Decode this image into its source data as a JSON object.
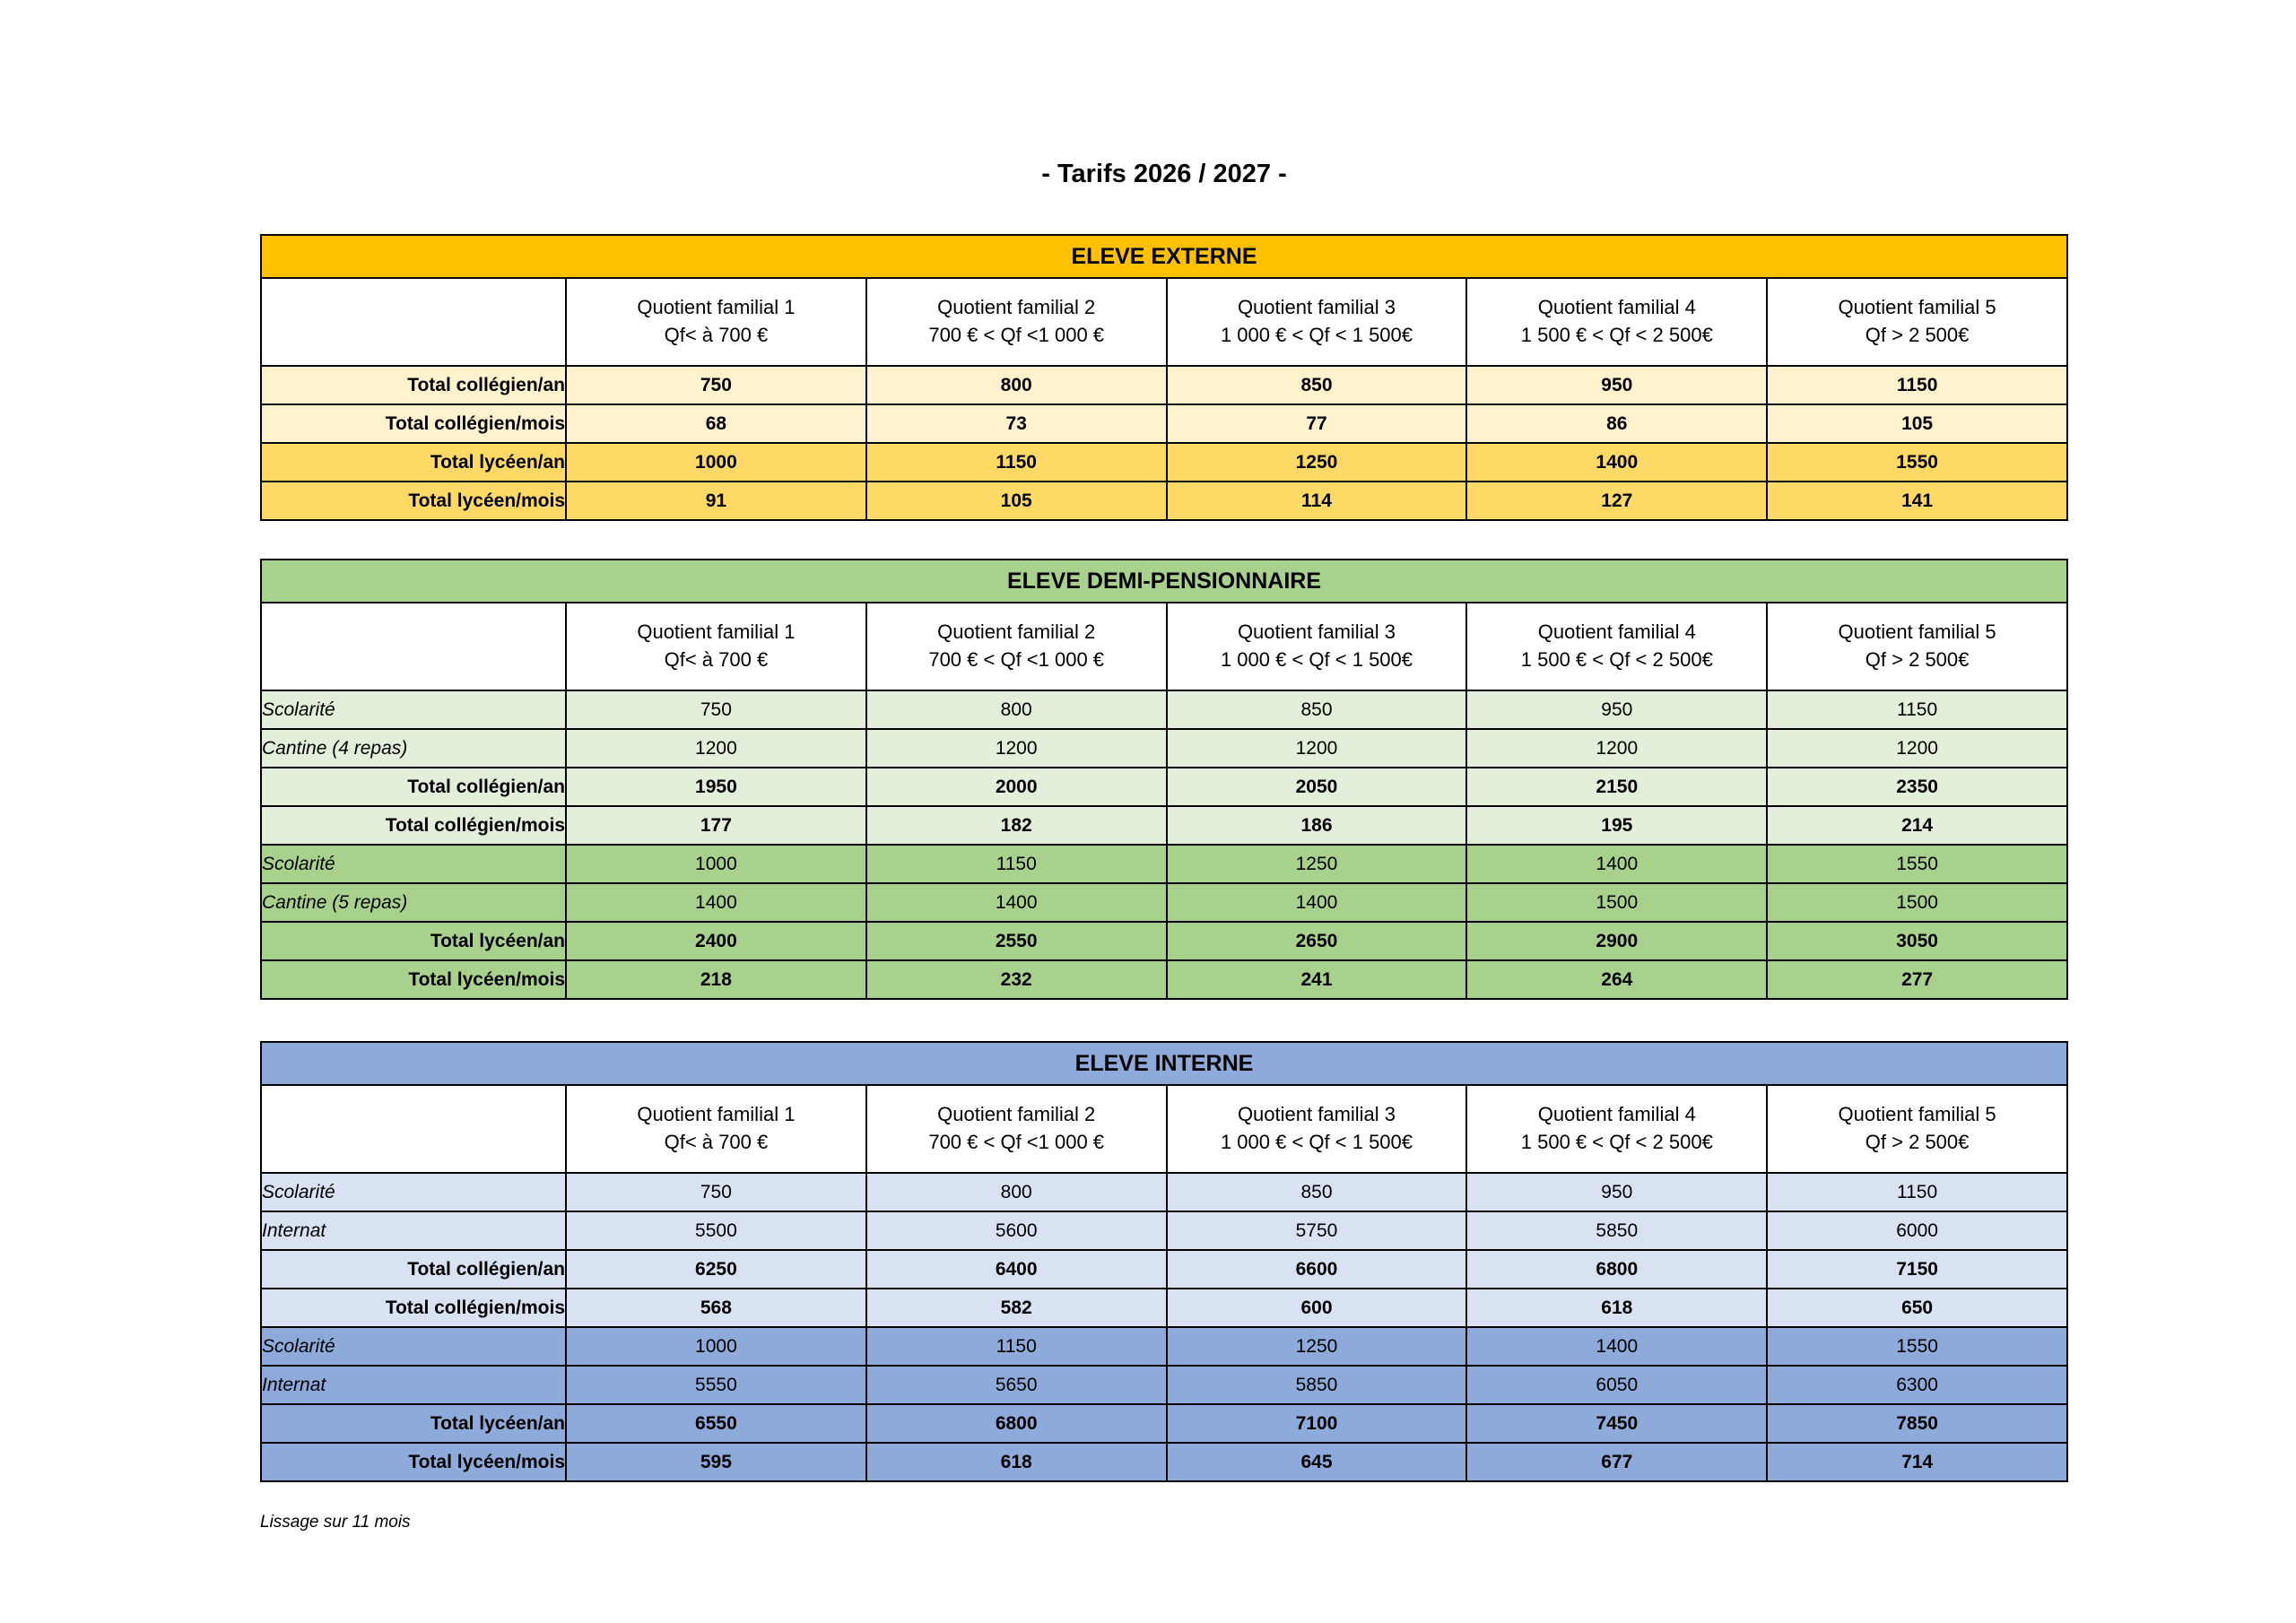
{
  "page": {
    "title": "- Tarifs 2026 / 2027 -",
    "footer_note": "Lissage sur 11 mois"
  },
  "column_headers": [
    {
      "line1": "Quotient familial 1",
      "line2": "Qf< à 700 €"
    },
    {
      "line1": "Quotient familial 2",
      "line2": "700 € < Qf <1 000 €"
    },
    {
      "line1": "Quotient familial 3",
      "line2": "1 000 € < Qf < 1 500€"
    },
    {
      "line1": "Quotient familial 4",
      "line2": "1 500 € < Qf < 2 500€"
    },
    {
      "line1": "Quotient familial 5",
      "line2": "Qf > 2 500€"
    }
  ],
  "tables": [
    {
      "id": "externe",
      "title": "ELEVE EXTERNE",
      "colors": {
        "band": "#FFC000",
        "light": "#FFF2CC",
        "dark": "#FFD966"
      },
      "rows": [
        {
          "label": "Total collégien/an",
          "kind": "total",
          "shade": "light",
          "values": [
            "750",
            "800",
            "850",
            "950",
            "1150"
          ]
        },
        {
          "label": "Total collégien/mois",
          "kind": "total",
          "shade": "light",
          "values": [
            "68",
            "73",
            "77",
            "86",
            "105"
          ]
        },
        {
          "label": "Total lycéen/an",
          "kind": "total",
          "shade": "dark",
          "values": [
            "1000",
            "1150",
            "1250",
            "1400",
            "1550"
          ]
        },
        {
          "label": "Total lycéen/mois",
          "kind": "total",
          "shade": "dark",
          "values": [
            "91",
            "105",
            "114",
            "127",
            "141"
          ]
        }
      ]
    },
    {
      "id": "demi-pensionnaire",
      "title": "ELEVE DEMI-PENSIONNAIRE",
      "colors": {
        "band": "#A9D18E",
        "light": "#E2EFDA",
        "dark": "#A9D18E"
      },
      "rows": [
        {
          "label": "Scolarité",
          "kind": "item",
          "shade": "light",
          "values": [
            "750",
            "800",
            "850",
            "950",
            "1150"
          ]
        },
        {
          "label": "Cantine (4 repas)",
          "kind": "item",
          "shade": "light",
          "values": [
            "1200",
            "1200",
            "1200",
            "1200",
            "1200"
          ]
        },
        {
          "label": "Total collégien/an",
          "kind": "total",
          "shade": "light",
          "values": [
            "1950",
            "2000",
            "2050",
            "2150",
            "2350"
          ]
        },
        {
          "label": "Total collégien/mois",
          "kind": "total",
          "shade": "light",
          "values": [
            "177",
            "182",
            "186",
            "195",
            "214"
          ]
        },
        {
          "label": "Scolarité",
          "kind": "item",
          "shade": "dark",
          "values": [
            "1000",
            "1150",
            "1250",
            "1400",
            "1550"
          ]
        },
        {
          "label": "Cantine (5 repas)",
          "kind": "item",
          "shade": "dark",
          "values": [
            "1400",
            "1400",
            "1400",
            "1500",
            "1500"
          ]
        },
        {
          "label": "Total lycéen/an",
          "kind": "total",
          "shade": "dark",
          "values": [
            "2400",
            "2550",
            "2650",
            "2900",
            "3050"
          ]
        },
        {
          "label": "Total lycéen/mois",
          "kind": "total",
          "shade": "dark",
          "values": [
            "218",
            "232",
            "241",
            "264",
            "277"
          ]
        }
      ]
    },
    {
      "id": "interne",
      "title": "ELEVE INTERNE",
      "colors": {
        "band": "#8EAADB",
        "light": "#D9E2F3",
        "dark": "#8EAADB"
      },
      "rows": [
        {
          "label": "Scolarité",
          "kind": "item",
          "shade": "light",
          "values": [
            "750",
            "800",
            "850",
            "950",
            "1150"
          ]
        },
        {
          "label": "Internat",
          "kind": "item",
          "shade": "light",
          "values": [
            "5500",
            "5600",
            "5750",
            "5850",
            "6000"
          ]
        },
        {
          "label": "Total collégien/an",
          "kind": "total",
          "shade": "light",
          "values": [
            "6250",
            "6400",
            "6600",
            "6800",
            "7150"
          ]
        },
        {
          "label": "Total collégien/mois",
          "kind": "total",
          "shade": "light",
          "values": [
            "568",
            "582",
            "600",
            "618",
            "650"
          ]
        },
        {
          "label": "Scolarité",
          "kind": "item",
          "shade": "dark",
          "values": [
            "1000",
            "1150",
            "1250",
            "1400",
            "1550"
          ]
        },
        {
          "label": "Internat",
          "kind": "item",
          "shade": "dark",
          "values": [
            "5550",
            "5650",
            "5850",
            "6050",
            "6300"
          ]
        },
        {
          "label": "Total lycéen/an",
          "kind": "total",
          "shade": "dark",
          "values": [
            "6550",
            "6800",
            "7100",
            "7450",
            "7850"
          ]
        },
        {
          "label": "Total lycéen/mois",
          "kind": "total",
          "shade": "dark",
          "values": [
            "595",
            "618",
            "645",
            "677",
            "714"
          ]
        }
      ]
    }
  ]
}
